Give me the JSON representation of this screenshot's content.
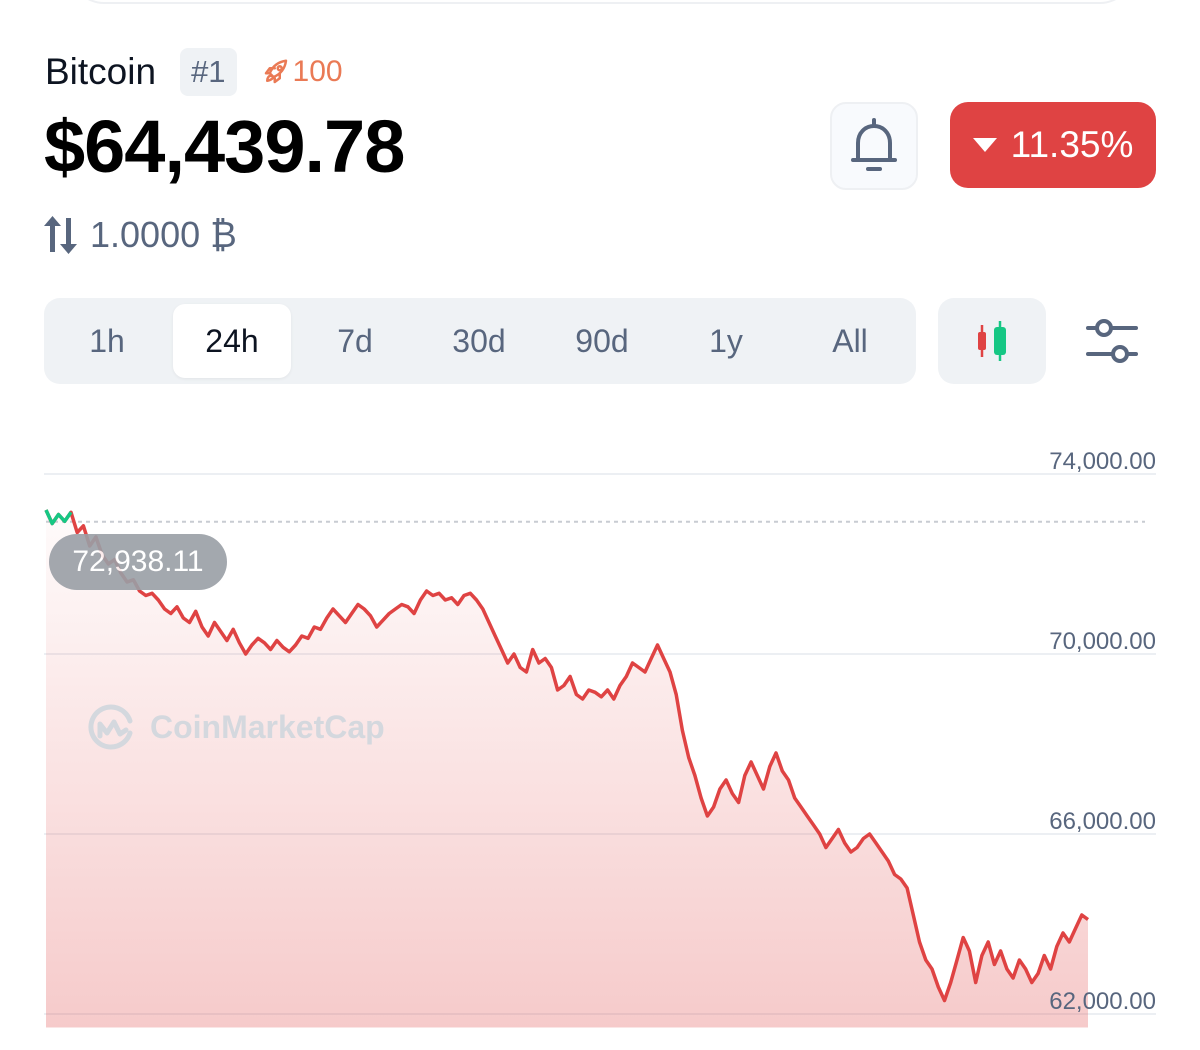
{
  "coin": {
    "name": "Bitcoin",
    "rank": "#1",
    "watchlist_count": "100",
    "price": "$64,439.78",
    "conversion": "1.0000 ₿"
  },
  "change": {
    "direction": "down",
    "value": "11.35%",
    "color": "#df4343"
  },
  "time_tabs": [
    {
      "label": "1h",
      "active": false
    },
    {
      "label": "24h",
      "active": true
    },
    {
      "label": "7d",
      "active": false
    },
    {
      "label": "30d",
      "active": false
    },
    {
      "label": "90d",
      "active": false
    },
    {
      "label": "1y",
      "active": false
    },
    {
      "label": "All",
      "active": false
    }
  ],
  "icons": {
    "watch": "rocket-icon",
    "convert": "swap-arrows-icon",
    "alert": "bell-icon",
    "candlestick": "candlestick-icon",
    "settings": "sliders-icon",
    "watermark": "coinmarketcap-logo"
  },
  "watermark_text": "CoinMarketCap",
  "chart_data": {
    "type": "line",
    "title": "",
    "xlabel": "",
    "ylabel": "",
    "timeframe": "24h",
    "ylim": [
      61700,
      75000
    ],
    "yticks": [
      "74,000.00",
      "70,000.00",
      "66,000.00",
      "62,000.00"
    ],
    "ytick_values": [
      74000,
      70000,
      66000,
      62000
    ],
    "reference_value": 72938.11,
    "reference_label": "72,938.11",
    "line_color": "#df4343",
    "up_color": "#16c784",
    "points": [
      73200,
      72900,
      73100,
      72950,
      73150,
      72700,
      72850,
      72400,
      72600,
      72200,
      72000,
      72100,
      71800,
      71600,
      71650,
      71400,
      71300,
      71350,
      71200,
      71000,
      70900,
      71050,
      70800,
      70700,
      70950,
      70600,
      70400,
      70700,
      70500,
      70300,
      70550,
      70250,
      70000,
      70200,
      70350,
      70250,
      70100,
      70300,
      70150,
      70050,
      70200,
      70400,
      70350,
      70600,
      70550,
      70800,
      71000,
      70850,
      70700,
      70900,
      71100,
      71000,
      70850,
      70600,
      70750,
      70900,
      71000,
      71100,
      71050,
      70900,
      71200,
      71400,
      71300,
      71350,
      71200,
      71250,
      71100,
      71300,
      71350,
      71200,
      71000,
      70700,
      70400,
      70100,
      69800,
      70000,
      69700,
      69600,
      70100,
      69800,
      69900,
      69700,
      69200,
      69300,
      69500,
      69100,
      69000,
      69200,
      69150,
      69050,
      69200,
      69000,
      69300,
      69500,
      69800,
      69700,
      69600,
      69900,
      70200,
      69900,
      69600,
      69100,
      68300,
      67700,
      67300,
      66800,
      66400,
      66600,
      67000,
      67200,
      66900,
      66700,
      67300,
      67600,
      67300,
      67000,
      67500,
      67800,
      67400,
      67200,
      66800,
      66600,
      66400,
      66200,
      66000,
      65700,
      65900,
      66100,
      65800,
      65600,
      65700,
      65900,
      66000,
      65800,
      65600,
      65400,
      65100,
      65000,
      64800,
      64200,
      63600,
      63200,
      63000,
      62600,
      62300,
      62700,
      63200,
      63700,
      63400,
      62700,
      63300,
      63600,
      63100,
      63400,
      63000,
      62800,
      63200,
      63000,
      62700,
      62900,
      63300,
      63000,
      63500,
      63800,
      63600,
      63900,
      64200,
      64100
    ]
  }
}
